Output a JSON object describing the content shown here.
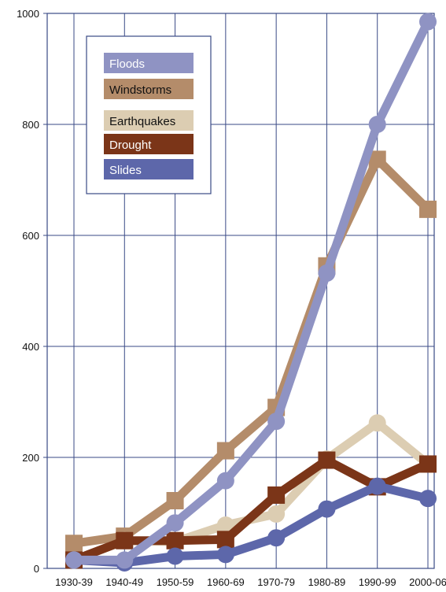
{
  "chart_data": {
    "type": "line",
    "categories": [
      "1930-39",
      "1940-49",
      "1950-59",
      "1960-69",
      "1970-79",
      "1980-89",
      "1990-99",
      "2000-06"
    ],
    "ylim": [
      0,
      1000
    ],
    "yticks": [
      0,
      200,
      400,
      600,
      800,
      1000
    ],
    "grid": true,
    "legend_placement": "top-left",
    "series": [
      {
        "name": "Floods",
        "color": "#8f93c3",
        "marker": "circle",
        "values": [
          15,
          15,
          82,
          158,
          265,
          532,
          800,
          985
        ]
      },
      {
        "name": "Windstorms",
        "color": "#b48c6a",
        "marker": "square",
        "values": [
          45,
          58,
          122,
          212,
          290,
          545,
          737,
          647
        ]
      },
      {
        "name": "Earthquakes",
        "color": "#dccdb2",
        "marker": "circle",
        "values": [
          15,
          50,
          48,
          78,
          98,
          197,
          262,
          188
        ]
      },
      {
        "name": "Drought",
        "color": "#7b3518",
        "marker": "square",
        "values": [
          15,
          50,
          50,
          52,
          132,
          195,
          147,
          188
        ]
      },
      {
        "name": "Slides",
        "color": "#5d67aa",
        "marker": "circle",
        "values": [
          15,
          10,
          22,
          25,
          55,
          107,
          148,
          126
        ]
      }
    ]
  }
}
